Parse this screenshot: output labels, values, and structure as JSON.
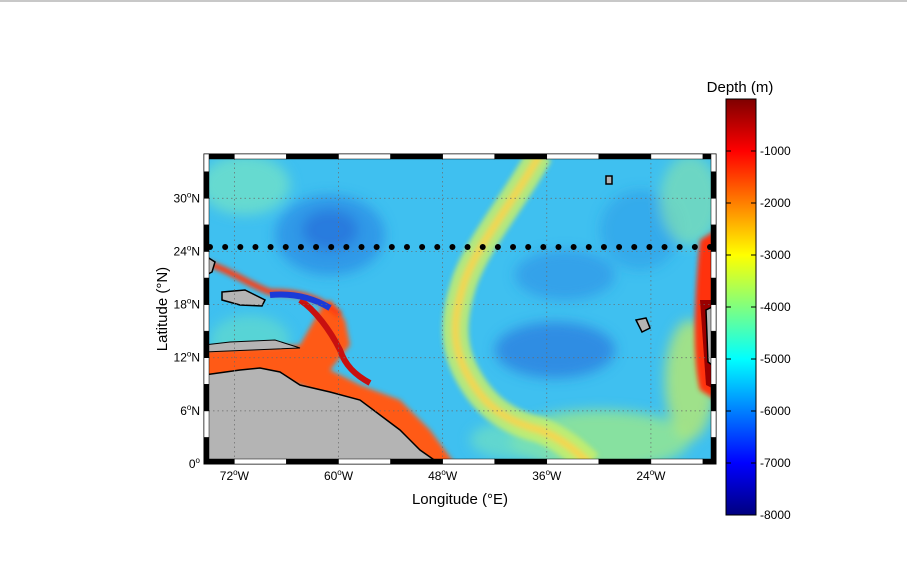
{
  "map": {
    "xlabel": "Longitude (°E)",
    "ylabel": "Latitude (°N)",
    "lon_ticks": [
      {
        "lon": -72,
        "deg": "72",
        "dir": "W"
      },
      {
        "lon": -60,
        "deg": "60",
        "dir": "W"
      },
      {
        "lon": -48,
        "deg": "48",
        "dir": "W"
      },
      {
        "lon": -36,
        "deg": "36",
        "dir": "W"
      },
      {
        "lon": -24,
        "deg": "24",
        "dir": "W"
      }
    ],
    "lat_ticks": [
      {
        "lat": 0,
        "deg": "0",
        "dir": ""
      },
      {
        "lat": 6,
        "deg": "6",
        "dir": "N"
      },
      {
        "lat": 12,
        "deg": "12",
        "dir": "N"
      },
      {
        "lat": 18,
        "deg": "18",
        "dir": "N"
      },
      {
        "lat": 24,
        "deg": "24",
        "dir": "N"
      },
      {
        "lat": 30,
        "deg": "30",
        "dir": "N"
      }
    ],
    "lon_range": [
      -75.5,
      -16.5
    ],
    "lat_range": [
      0,
      35
    ],
    "grid": true,
    "station_latitude": 24.5,
    "station_count": 34,
    "land_color": "#b4b4b4"
  },
  "colorbar": {
    "title": "Depth (m)",
    "ticks": [
      "-1000",
      "-2000",
      "-3000",
      "-4000",
      "-5000",
      "-6000",
      "-7000",
      "-8000"
    ],
    "range": [
      -8000,
      0
    ],
    "colormap": "jet"
  }
}
